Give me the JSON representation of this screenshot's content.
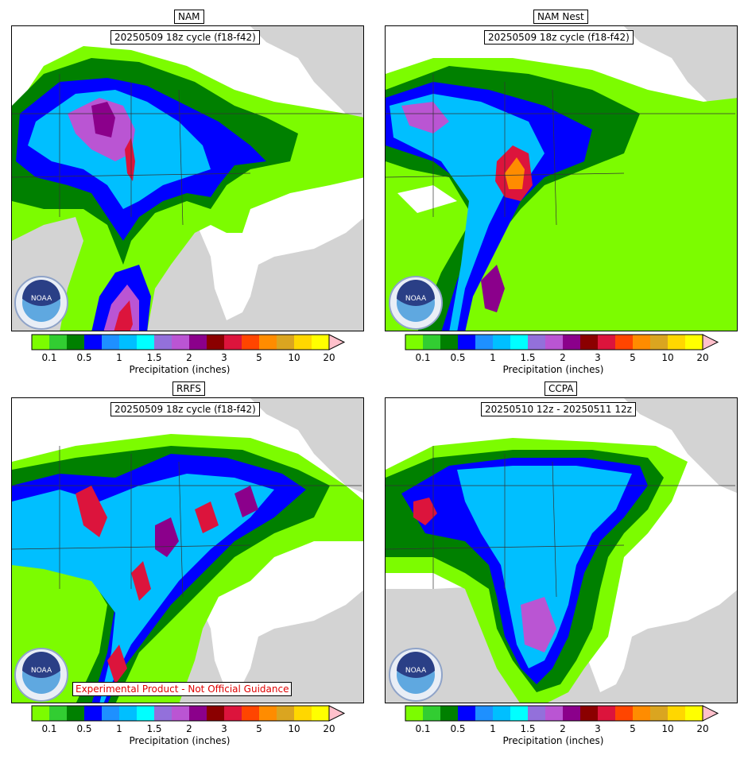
{
  "panels": [
    {
      "title": "NAM",
      "subtitle": "20250509 18z cycle (f18-f42)"
    },
    {
      "title": "NAM Nest",
      "subtitle": "20250509 18z cycle (f18-f42)"
    },
    {
      "title": "RRFS",
      "subtitle": "20250509 18z cycle (f18-f42)",
      "warning": "Experimental Product - Not Official Guidance"
    },
    {
      "title": "CCPA",
      "subtitle": "20250510 12z - 20250511 12z"
    }
  ],
  "colorbar": {
    "label": "Precipitation (inches)",
    "colors": [
      "#7cfc00",
      "#32cd32",
      "#008000",
      "#0000ff",
      "#1e90ff",
      "#00bfff",
      "#00ffff",
      "#9370db",
      "#ba55d3",
      "#8b008b",
      "#8b0000",
      "#dc143c",
      "#ff4500",
      "#ff8c00",
      "#daa520",
      "#ffd700",
      "#ffff00"
    ],
    "extend_color": "#ffc0cb",
    "ticks": [
      "0.1",
      "0.5",
      "1",
      "1.5",
      "2",
      "3",
      "5",
      "10",
      "20"
    ]
  },
  "logo": {
    "text": "NOAA"
  },
  "colors": {
    "land": "#ffffff",
    "ocean": "#d3d3d3"
  }
}
